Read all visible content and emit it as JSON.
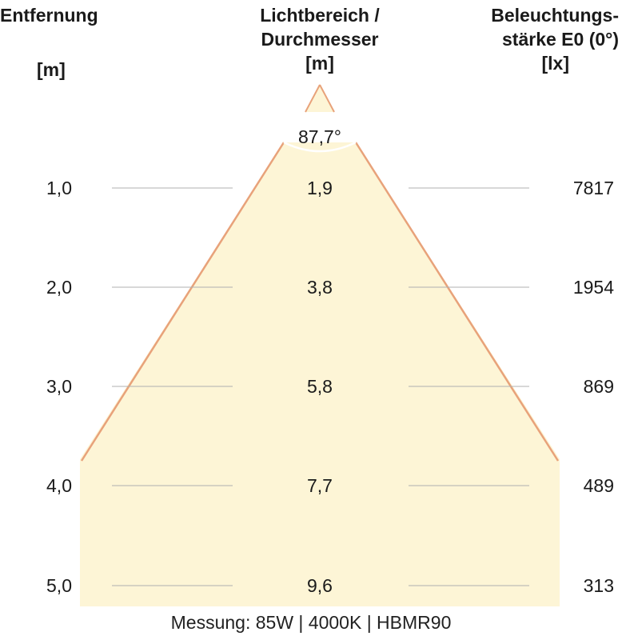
{
  "headers": {
    "distance": {
      "title": "Entfernung",
      "unit": "[m]"
    },
    "diameter": {
      "title_line1": "Lichtbereich /",
      "title_line2": "Durchmesser",
      "unit": "[m]"
    },
    "illuminance": {
      "title_line1": "Beleuchtungs-",
      "title_line2": "stärke E0 (0°)",
      "unit": "[lx]"
    }
  },
  "beam_angle": "87,7°",
  "rows": [
    {
      "distance": "1,0",
      "diameter": "1,9",
      "illuminance": "7817"
    },
    {
      "distance": "2,0",
      "diameter": "3,8",
      "illuminance": "1954"
    },
    {
      "distance": "3,0",
      "diameter": "5,8",
      "illuminance": "869"
    },
    {
      "distance": "4,0",
      "diameter": "7,7",
      "illuminance": "489"
    },
    {
      "distance": "5,0",
      "diameter": "9,6",
      "illuminance": "313"
    }
  ],
  "footer": "Messung: 85W | 4000K | HBMR90",
  "colors": {
    "light_fill": "#fdf5d6",
    "cone_edge": "#e8a27a",
    "row_line": "#b0b0b0",
    "text": "#1a1a1a"
  }
}
